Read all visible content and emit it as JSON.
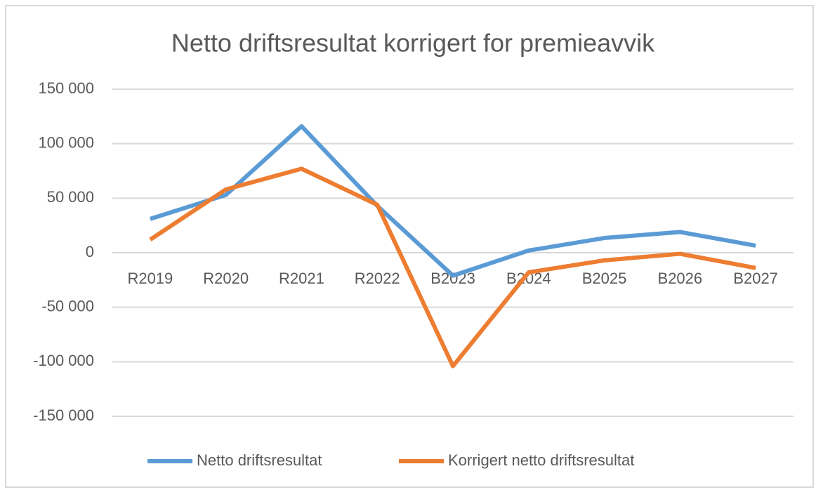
{
  "chart_data": {
    "type": "line",
    "title": "Netto driftsresultat korrigert for premieavvik",
    "categories": [
      "R2019",
      "R2020",
      "R2021",
      "R2022",
      "B2023",
      "B2024",
      "B2025",
      "B2026",
      "B2027"
    ],
    "series": [
      {
        "name": "Netto driftsresultat",
        "color": "#5b9bd5",
        "values": [
          31000,
          53000,
          116000,
          43000,
          -21000,
          2000,
          13500,
          19000,
          6500
        ]
      },
      {
        "name": "Korrigert netto driftsresultat",
        "color": "#ed7d31",
        "values": [
          12000,
          58000,
          77000,
          44000,
          -104000,
          -18000,
          -7000,
          -1000,
          -14000
        ]
      }
    ],
    "ylim": [
      -150000,
      150000
    ],
    "yticks": [
      {
        "value": -150000,
        "label": "-150 000"
      },
      {
        "value": -100000,
        "label": "-100 000"
      },
      {
        "value": -50000,
        "label": "-50 000"
      },
      0,
      {
        "value": 50000,
        "label": "50 000"
      },
      {
        "value": 100000,
        "label": "100 000"
      },
      {
        "value": 150000,
        "label": "150 000"
      }
    ],
    "grid": true,
    "legend": "bottom"
  }
}
